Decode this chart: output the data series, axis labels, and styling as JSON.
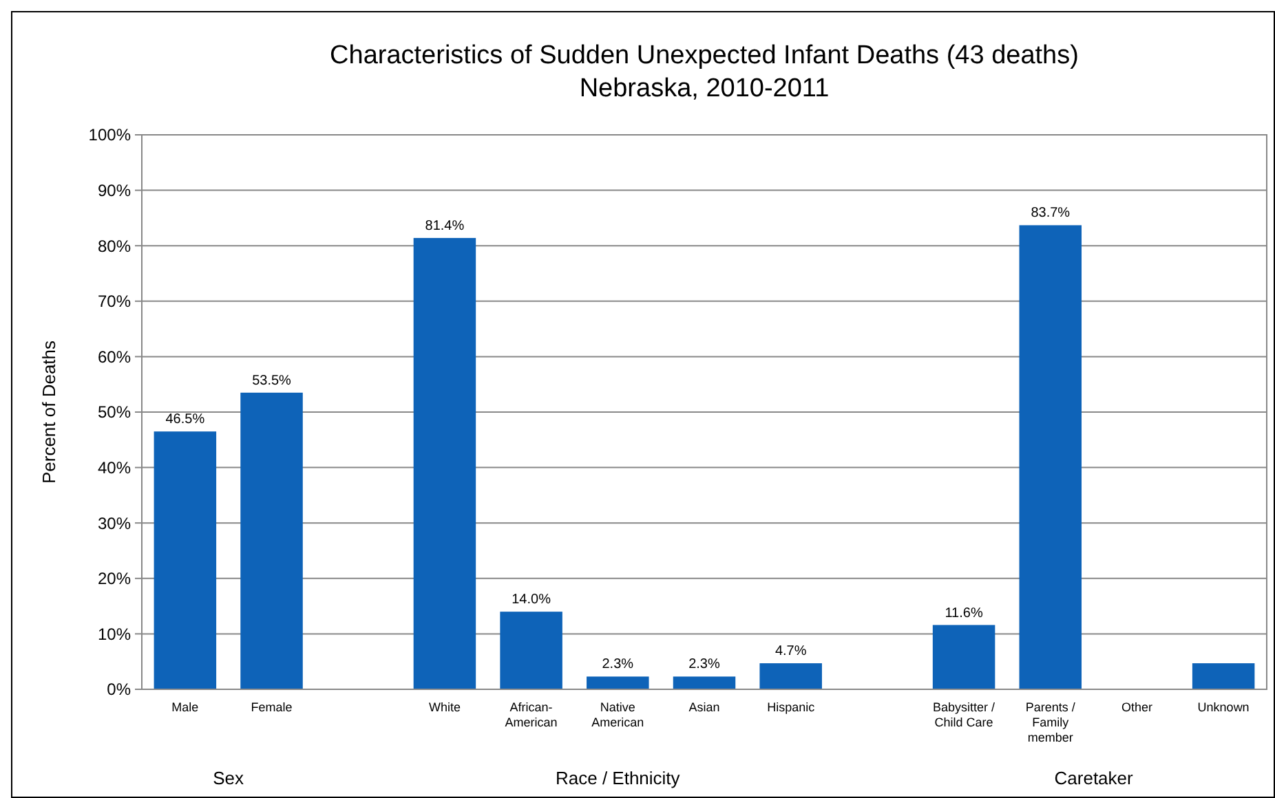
{
  "chart_data": {
    "type": "bar",
    "title": "Characteristics of Sudden Unexpected Infant Deaths (43 deaths)",
    "subtitle": "Nebraska, 2010-2011",
    "ylabel": "Percent of Deaths",
    "categories": [
      "Male",
      "Female",
      null,
      "White",
      "African-American",
      "Native American",
      "Asian",
      "Hispanic",
      null,
      "Babysitter / Child Care",
      "Parents / Family member",
      "Other",
      "Unknown"
    ],
    "values": [
      46.5,
      53.5,
      null,
      81.4,
      14.0,
      2.3,
      2.3,
      4.7,
      null,
      11.6,
      83.7,
      0,
      4.7
    ],
    "value_labels": [
      "46.5%",
      "53.5%",
      null,
      "81.4%",
      "14.0%",
      "2.3%",
      "2.3%",
      "4.7%",
      null,
      "11.6%",
      "83.7%",
      null,
      null
    ],
    "color": "#0e63b8",
    "ylim": [
      0,
      100
    ],
    "yticks": [
      {
        "value": 0,
        "label": "0%"
      },
      {
        "value": 10,
        "label": "10%"
      },
      {
        "value": 20,
        "label": "20%"
      },
      {
        "value": 30,
        "label": "30%"
      },
      {
        "value": 40,
        "label": "40%"
      },
      {
        "value": 50,
        "label": "50%"
      },
      {
        "value": 60,
        "label": "60%"
      },
      {
        "value": 70,
        "label": "70%"
      },
      {
        "value": 80,
        "label": "80%"
      },
      {
        "value": 90,
        "label": "90%"
      },
      {
        "value": 100,
        "label": "100%"
      }
    ],
    "grid": "y",
    "annotations": [
      "Sex",
      "Race / Ethnicity",
      "Caretaker"
    ]
  }
}
